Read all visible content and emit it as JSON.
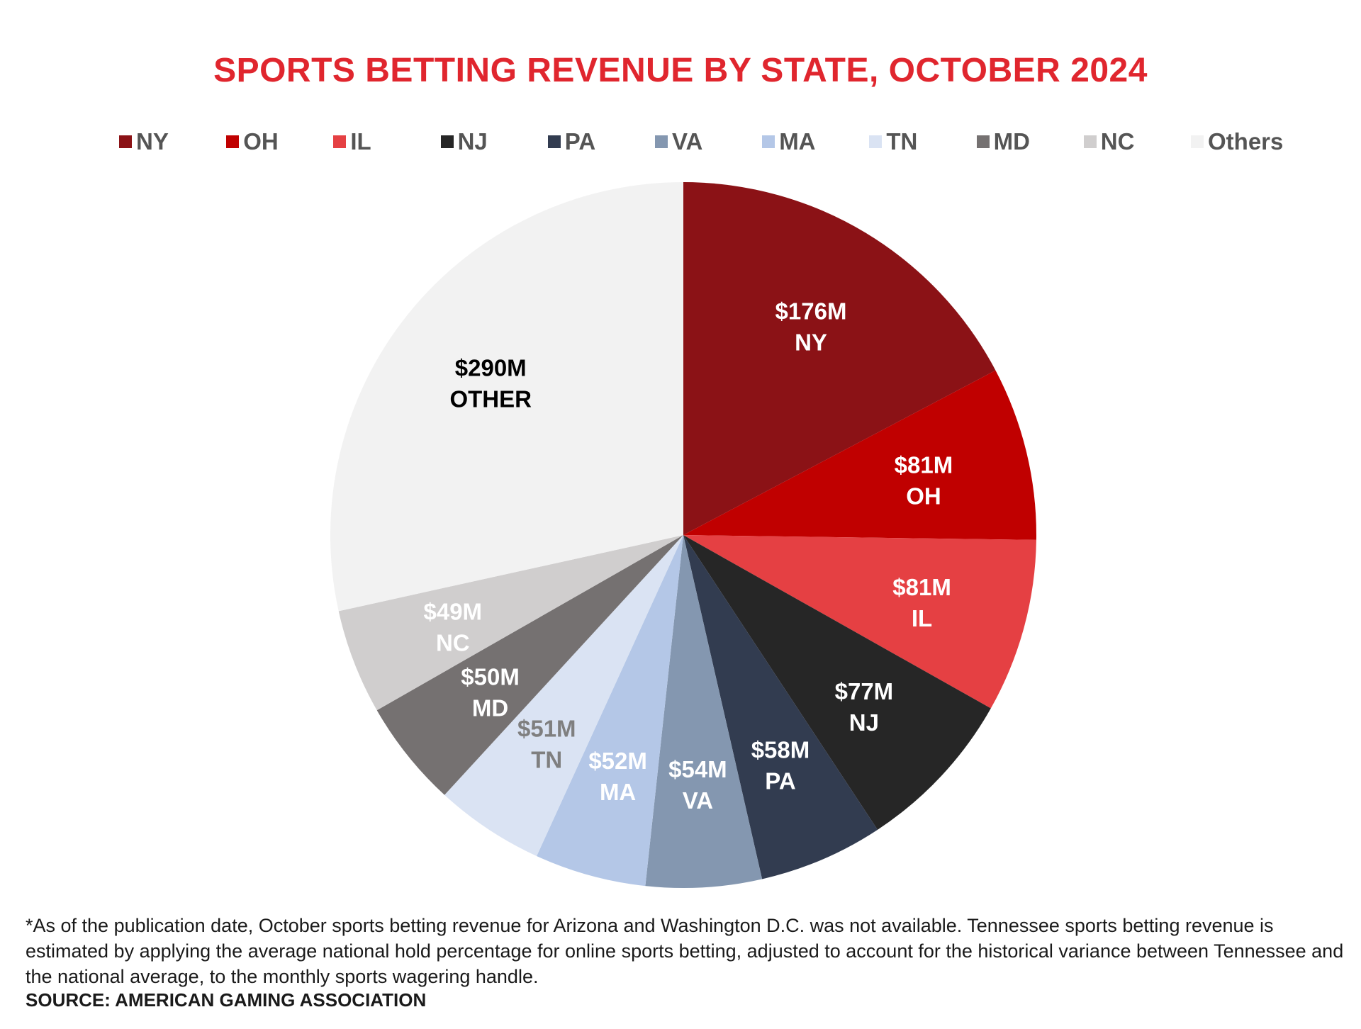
{
  "chart_data": {
    "type": "pie",
    "title": "SPORTS BETTING REVENUE BY STATE, OCTOBER 2024",
    "legend_position": "top",
    "slices": [
      {
        "name": "NY",
        "label": "NY",
        "value": 176,
        "value_label": "$176M",
        "color": "#8b1216",
        "text_color": "#ffffff"
      },
      {
        "name": "OH",
        "label": "OH",
        "value": 81,
        "value_label": "$81M",
        "color": "#c00000",
        "text_color": "#ffffff"
      },
      {
        "name": "IL",
        "label": "IL",
        "value": 81,
        "value_label": "$81M",
        "color": "#e54043",
        "text_color": "#ffffff"
      },
      {
        "name": "NJ",
        "label": "NJ",
        "value": 77,
        "value_label": "$77M",
        "color": "#262626",
        "text_color": "#ffffff"
      },
      {
        "name": "PA",
        "label": "PA",
        "value": 58,
        "value_label": "$58M",
        "color": "#323c50",
        "text_color": "#ffffff"
      },
      {
        "name": "VA",
        "label": "VA",
        "value": 54,
        "value_label": "$54M",
        "color": "#8497b0",
        "text_color": "#ffffff"
      },
      {
        "name": "MA",
        "label": "MA",
        "value": 52,
        "value_label": "$52M",
        "color": "#b4c7e7",
        "text_color": "#ffffff"
      },
      {
        "name": "TN",
        "label": "TN",
        "value": 51,
        "value_label": "$51M",
        "color": "#dae3f3",
        "text_color": "#7f7f7f"
      },
      {
        "name": "MD",
        "label": "MD",
        "value": 50,
        "value_label": "$50M",
        "color": "#757171",
        "text_color": "#ffffff"
      },
      {
        "name": "NC",
        "label": "NC",
        "value": 49,
        "value_label": "$49M",
        "color": "#d0cece",
        "text_color": "#ffffff"
      },
      {
        "name": "Others",
        "label": "OTHER",
        "value": 290,
        "value_label": "$290M",
        "color": "#f2f2f2",
        "text_color": "#000000"
      }
    ]
  },
  "footnote": "*As of the publication date, October sports betting revenue for Arizona and Washington D.C. was not available. Tennessee sports betting revenue is estimated by applying the average national hold percentage for online sports betting, adjusted to account for the historical variance between Tennessee and the national average, to the monthly sports wagering handle.",
  "source": "SOURCE: AMERICAN GAMING ASSOCIATION"
}
